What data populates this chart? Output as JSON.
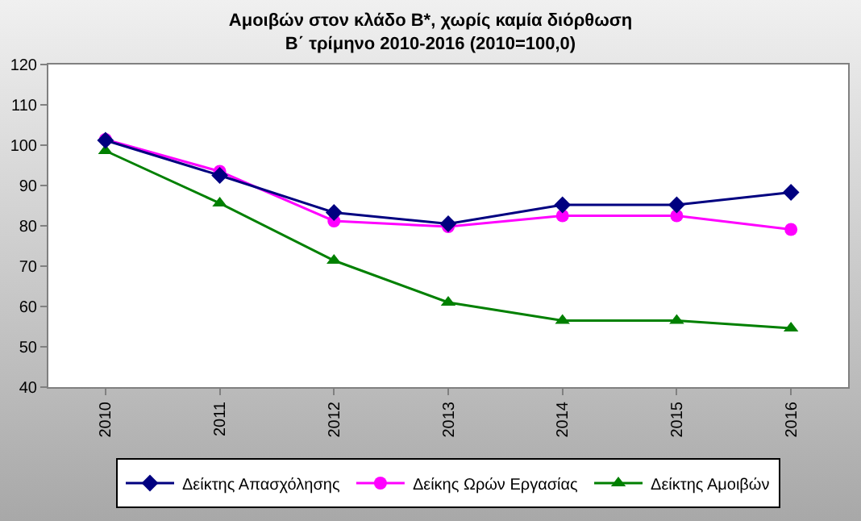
{
  "chart_data": {
    "type": "line",
    "title": "Αμοιβών στον κλάδο Β*, χωρίς καμία διόρθωση\nΒ΄ τρίμηνο 2010-2016 (2010=100,0)",
    "categories": [
      "2010",
      "2011",
      "2012",
      "2013",
      "2014",
      "2015",
      "2016"
    ],
    "series": [
      {
        "name": "Δείκτης Απασχόλησης",
        "color": "#000080",
        "marker": "diamond",
        "values": [
          101.2,
          92.5,
          83.3,
          80.5,
          85.2,
          85.2,
          88.3
        ]
      },
      {
        "name": "Δείκης Ωρών Εργασίας",
        "color": "#ff00ff",
        "marker": "circle",
        "values": [
          101.4,
          93.5,
          81.2,
          79.8,
          82.5,
          82.5,
          79.1
        ]
      },
      {
        "name": "Δείκτης Αμοιβών",
        "color": "#008000",
        "marker": "triangle",
        "values": [
          98.6,
          85.6,
          71.4,
          61.0,
          56.5,
          56.5,
          54.6
        ]
      }
    ],
    "ylim": [
      40,
      120
    ],
    "yticks": [
      40,
      50,
      60,
      70,
      80,
      90,
      100,
      110,
      120
    ],
    "grid": false,
    "legend": "bottom",
    "line_style": "solid"
  }
}
